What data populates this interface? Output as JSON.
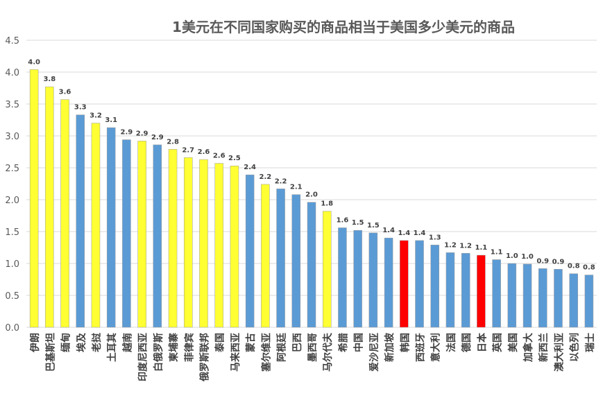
{
  "chart_data": {
    "type": "bar",
    "title": "1美元在不同国家购买的商品相当于美国多少美元的商品",
    "categories": [
      "伊朗",
      "巴基斯坦",
      "缅甸",
      "埃及",
      "老挝",
      "土耳其",
      "越南",
      "印度尼西亚",
      "白俄罗斯",
      "柬埔寨",
      "菲律宾",
      "俄罗斯联邦",
      "泰国",
      "马来西亚",
      "蒙古",
      "塞尔维亚",
      "阿根廷",
      "巴西",
      "墨西哥",
      "马尔代夫",
      "希腊",
      "中国",
      "爱沙尼亚",
      "新加坡",
      "韩国",
      "西班牙",
      "意大利",
      "法国",
      "德国",
      "日本",
      "英国",
      "美国",
      "加拿大",
      "新西兰",
      "澳大利亚",
      "以色列",
      "瑞士"
    ],
    "values": [
      4.04,
      3.77,
      3.57,
      3.33,
      3.2,
      3.13,
      2.94,
      2.92,
      2.86,
      2.79,
      2.66,
      2.63,
      2.57,
      2.53,
      2.39,
      2.24,
      2.17,
      2.08,
      1.96,
      1.82,
      1.56,
      1.52,
      1.48,
      1.4,
      1.36,
      1.36,
      1.29,
      1.17,
      1.16,
      1.13,
      1.06,
      1.0,
      0.99,
      0.92,
      0.91,
      0.84,
      0.82
    ],
    "value_labels": [
      "4.0",
      "3.8",
      "3.6",
      "3.3",
      "3.2",
      "3.1",
      "2.9",
      "2.9",
      "2.9",
      "2.8",
      "2.7",
      "2.6",
      "2.6",
      "2.5",
      "2.4",
      "2.2",
      "2.2",
      "2.1",
      "2.0",
      "1.8",
      "1.6",
      "1.5",
      "1.5",
      "1.4",
      "1.4",
      "1.4",
      "1.3",
      "1.2",
      "1.2",
      "1.1",
      "1.1",
      "1.0",
      "1.0",
      "0.9",
      "0.9",
      "0.8",
      "0.8"
    ],
    "colors": [
      "#ffff33",
      "#ffff33",
      "#ffff33",
      "#5b9bd5",
      "#ffff33",
      "#5b9bd5",
      "#5b9bd5",
      "#ffff33",
      "#5b9bd5",
      "#ffff33",
      "#ffff33",
      "#ffff33",
      "#ffff33",
      "#ffff33",
      "#5b9bd5",
      "#ffff33",
      "#5b9bd5",
      "#5b9bd5",
      "#5b9bd5",
      "#ffff33",
      "#5b9bd5",
      "#5b9bd5",
      "#5b9bd5",
      "#5b9bd5",
      "#ff0000",
      "#5b9bd5",
      "#5b9bd5",
      "#5b9bd5",
      "#5b9bd5",
      "#ff0000",
      "#5b9bd5",
      "#5b9bd5",
      "#5b9bd5",
      "#5b9bd5",
      "#5b9bd5",
      "#5b9bd5",
      "#5b9bd5"
    ],
    "ylim": [
      0,
      4.5
    ],
    "yticks": [
      {
        "value": 0,
        "label": "0.0"
      },
      {
        "value": 0.5,
        "label": "0.5"
      },
      {
        "value": 1,
        "label": "1.0"
      },
      {
        "value": 1.5,
        "label": "1.5"
      },
      {
        "value": 2,
        "label": "2.0"
      },
      {
        "value": 2.5,
        "label": "2.5"
      },
      {
        "value": 3,
        "label": "3.0"
      },
      {
        "value": 3.5,
        "label": "3.5"
      },
      {
        "value": 4,
        "label": "4.0"
      },
      {
        "value": 4.5,
        "label": "4.5"
      }
    ],
    "grid": true
  }
}
